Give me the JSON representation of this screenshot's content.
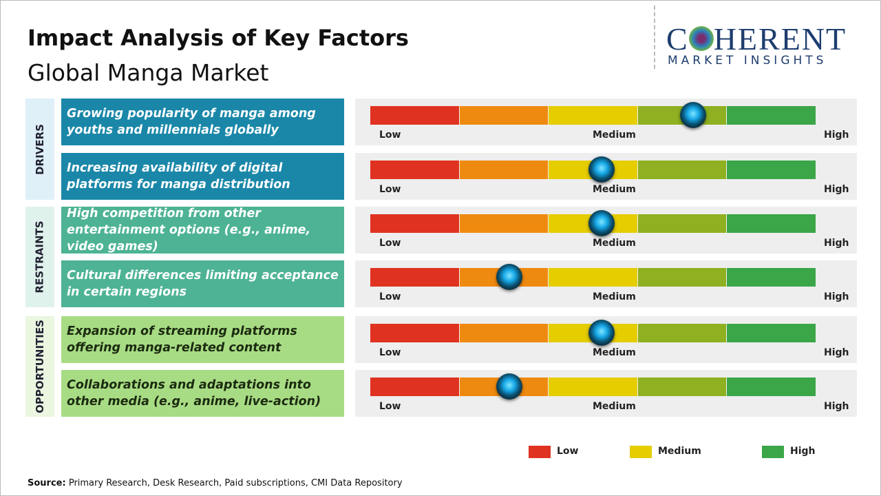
{
  "header": {
    "title": "Impact Analysis of Key Factors",
    "subtitle": "Global Manga Market"
  },
  "logo": {
    "name_start": "C",
    "name_end": "HERENT",
    "tagline": "MARKET INSIGHTS"
  },
  "groups": [
    {
      "label": "DRIVERS",
      "factors": [
        "Growing popularity of manga among youths and millennials globally",
        "Increasing availability of digital platforms for manga distribution"
      ]
    },
    {
      "label": "RESTRAINTS",
      "factors": [
        "High competition from other entertainment options (e.g., anime, video games)",
        "Cultural differences limiting acceptance in certain regions"
      ]
    },
    {
      "label": "OPPORTUNITIES",
      "factors": [
        "Expansion of streaming platforms offering manga-related content",
        "Collaborations and adaptations into other media (e.g., anime, live-action)"
      ]
    }
  ],
  "scale": {
    "low": "Low",
    "medium": "Medium",
    "high": "High"
  },
  "legend": [
    "Low",
    "Medium",
    "High"
  ],
  "source": {
    "label": "Source:",
    "text": "Primary Research, Desk Research, Paid subscriptions, CMI Data Repository"
  }
}
